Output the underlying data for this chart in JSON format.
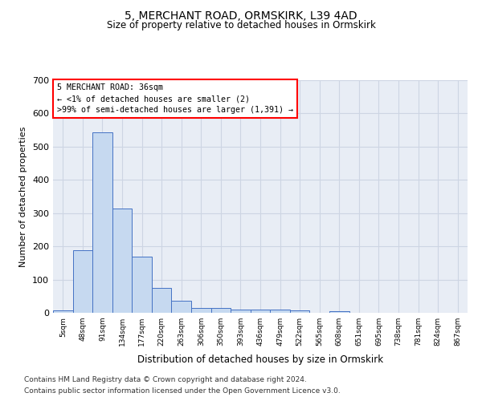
{
  "title1": "5, MERCHANT ROAD, ORMSKIRK, L39 4AD",
  "title2": "Size of property relative to detached houses in Ormskirk",
  "xlabel": "Distribution of detached houses by size in Ormskirk",
  "ylabel": "Number of detached properties",
  "bar_labels": [
    "5sqm",
    "48sqm",
    "91sqm",
    "134sqm",
    "177sqm",
    "220sqm",
    "263sqm",
    "306sqm",
    "350sqm",
    "393sqm",
    "436sqm",
    "479sqm",
    "522sqm",
    "565sqm",
    "608sqm",
    "651sqm",
    "695sqm",
    "738sqm",
    "781sqm",
    "824sqm",
    "867sqm"
  ],
  "bar_values": [
    7,
    188,
    543,
    315,
    168,
    76,
    37,
    14,
    14,
    10,
    10,
    10,
    7,
    0,
    5,
    0,
    0,
    0,
    0,
    0,
    0
  ],
  "bar_color": "#c6d9f0",
  "bar_edge_color": "#4472c4",
  "annotation_text": "5 MERCHANT ROAD: 36sqm\n← <1% of detached houses are smaller (2)\n>99% of semi-detached houses are larger (1,391) →",
  "ylim": [
    0,
    700
  ],
  "yticks": [
    0,
    100,
    200,
    300,
    400,
    500,
    600,
    700
  ],
  "footnote1": "Contains HM Land Registry data © Crown copyright and database right 2024.",
  "footnote2": "Contains public sector information licensed under the Open Government Licence v3.0.",
  "grid_color": "#cdd5e3",
  "background_color": "#e8edf5"
}
